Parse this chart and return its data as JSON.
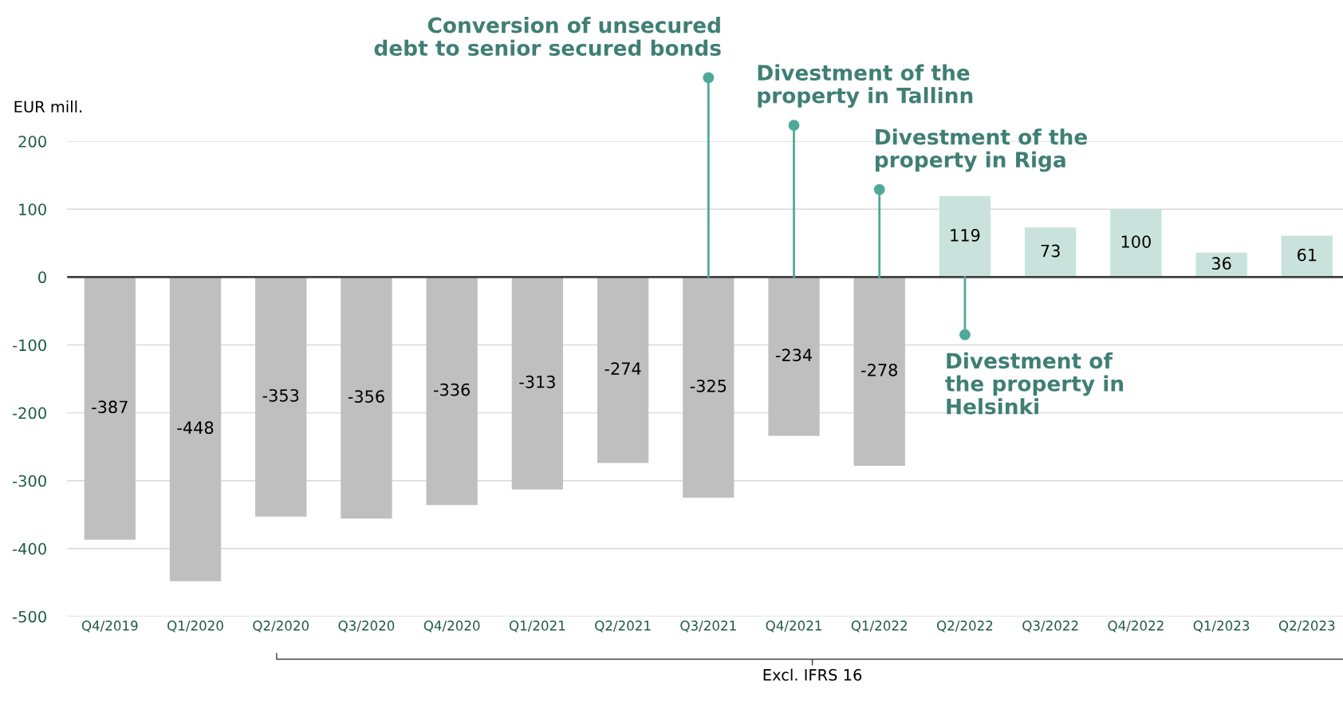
{
  "chart_data": {
    "type": "bar",
    "ylabel": "EUR mill.",
    "categories": [
      "Q4/2019",
      "Q1/2020",
      "Q2/2020",
      "Q3/2020",
      "Q4/2020",
      "Q1/2021",
      "Q2/2021",
      "Q3/2021",
      "Q4/2021",
      "Q1/2022",
      "Q2/2022",
      "Q3/2022",
      "Q4/2022",
      "Q1/2023",
      "Q2/2023"
    ],
    "values": [
      -387,
      -448,
      -353,
      -356,
      -336,
      -313,
      -274,
      -325,
      -234,
      -278,
      119,
      73,
      100,
      36,
      61
    ],
    "colors": [
      "#bfbfbf",
      "#bfbfbf",
      "#bfbfbf",
      "#bfbfbf",
      "#bfbfbf",
      "#bfbfbf",
      "#bfbfbf",
      "#bfbfbf",
      "#bfbfbf",
      "#bfbfbf",
      "#c9e3dc",
      "#c9e3dc",
      "#c9e3dc",
      "#c9e3dc",
      "#c9e3dc"
    ],
    "data_labels": true,
    "ylim": [
      -500,
      200
    ],
    "yticks": [
      -500,
      -400,
      -300,
      -200,
      -100,
      0,
      100,
      200
    ],
    "grid": "y",
    "annotations": [
      {
        "text": "Conversion of unsecured\ndebt to senior secured bonds",
        "x": "Q3/2021",
        "y": 0
      },
      {
        "text": "Divestment of the\nproperty in Tallinn",
        "x": "Q4/2021",
        "y": 0
      },
      {
        "text": "Divestment of the\nproperty in Riga",
        "x": "Q1/2022",
        "y": 0
      },
      {
        "text": "Divestment of\nthe property in\nHelsinki",
        "x": "Q2/2022",
        "y": 0
      },
      "Excl. IFRS 16"
    ]
  }
}
